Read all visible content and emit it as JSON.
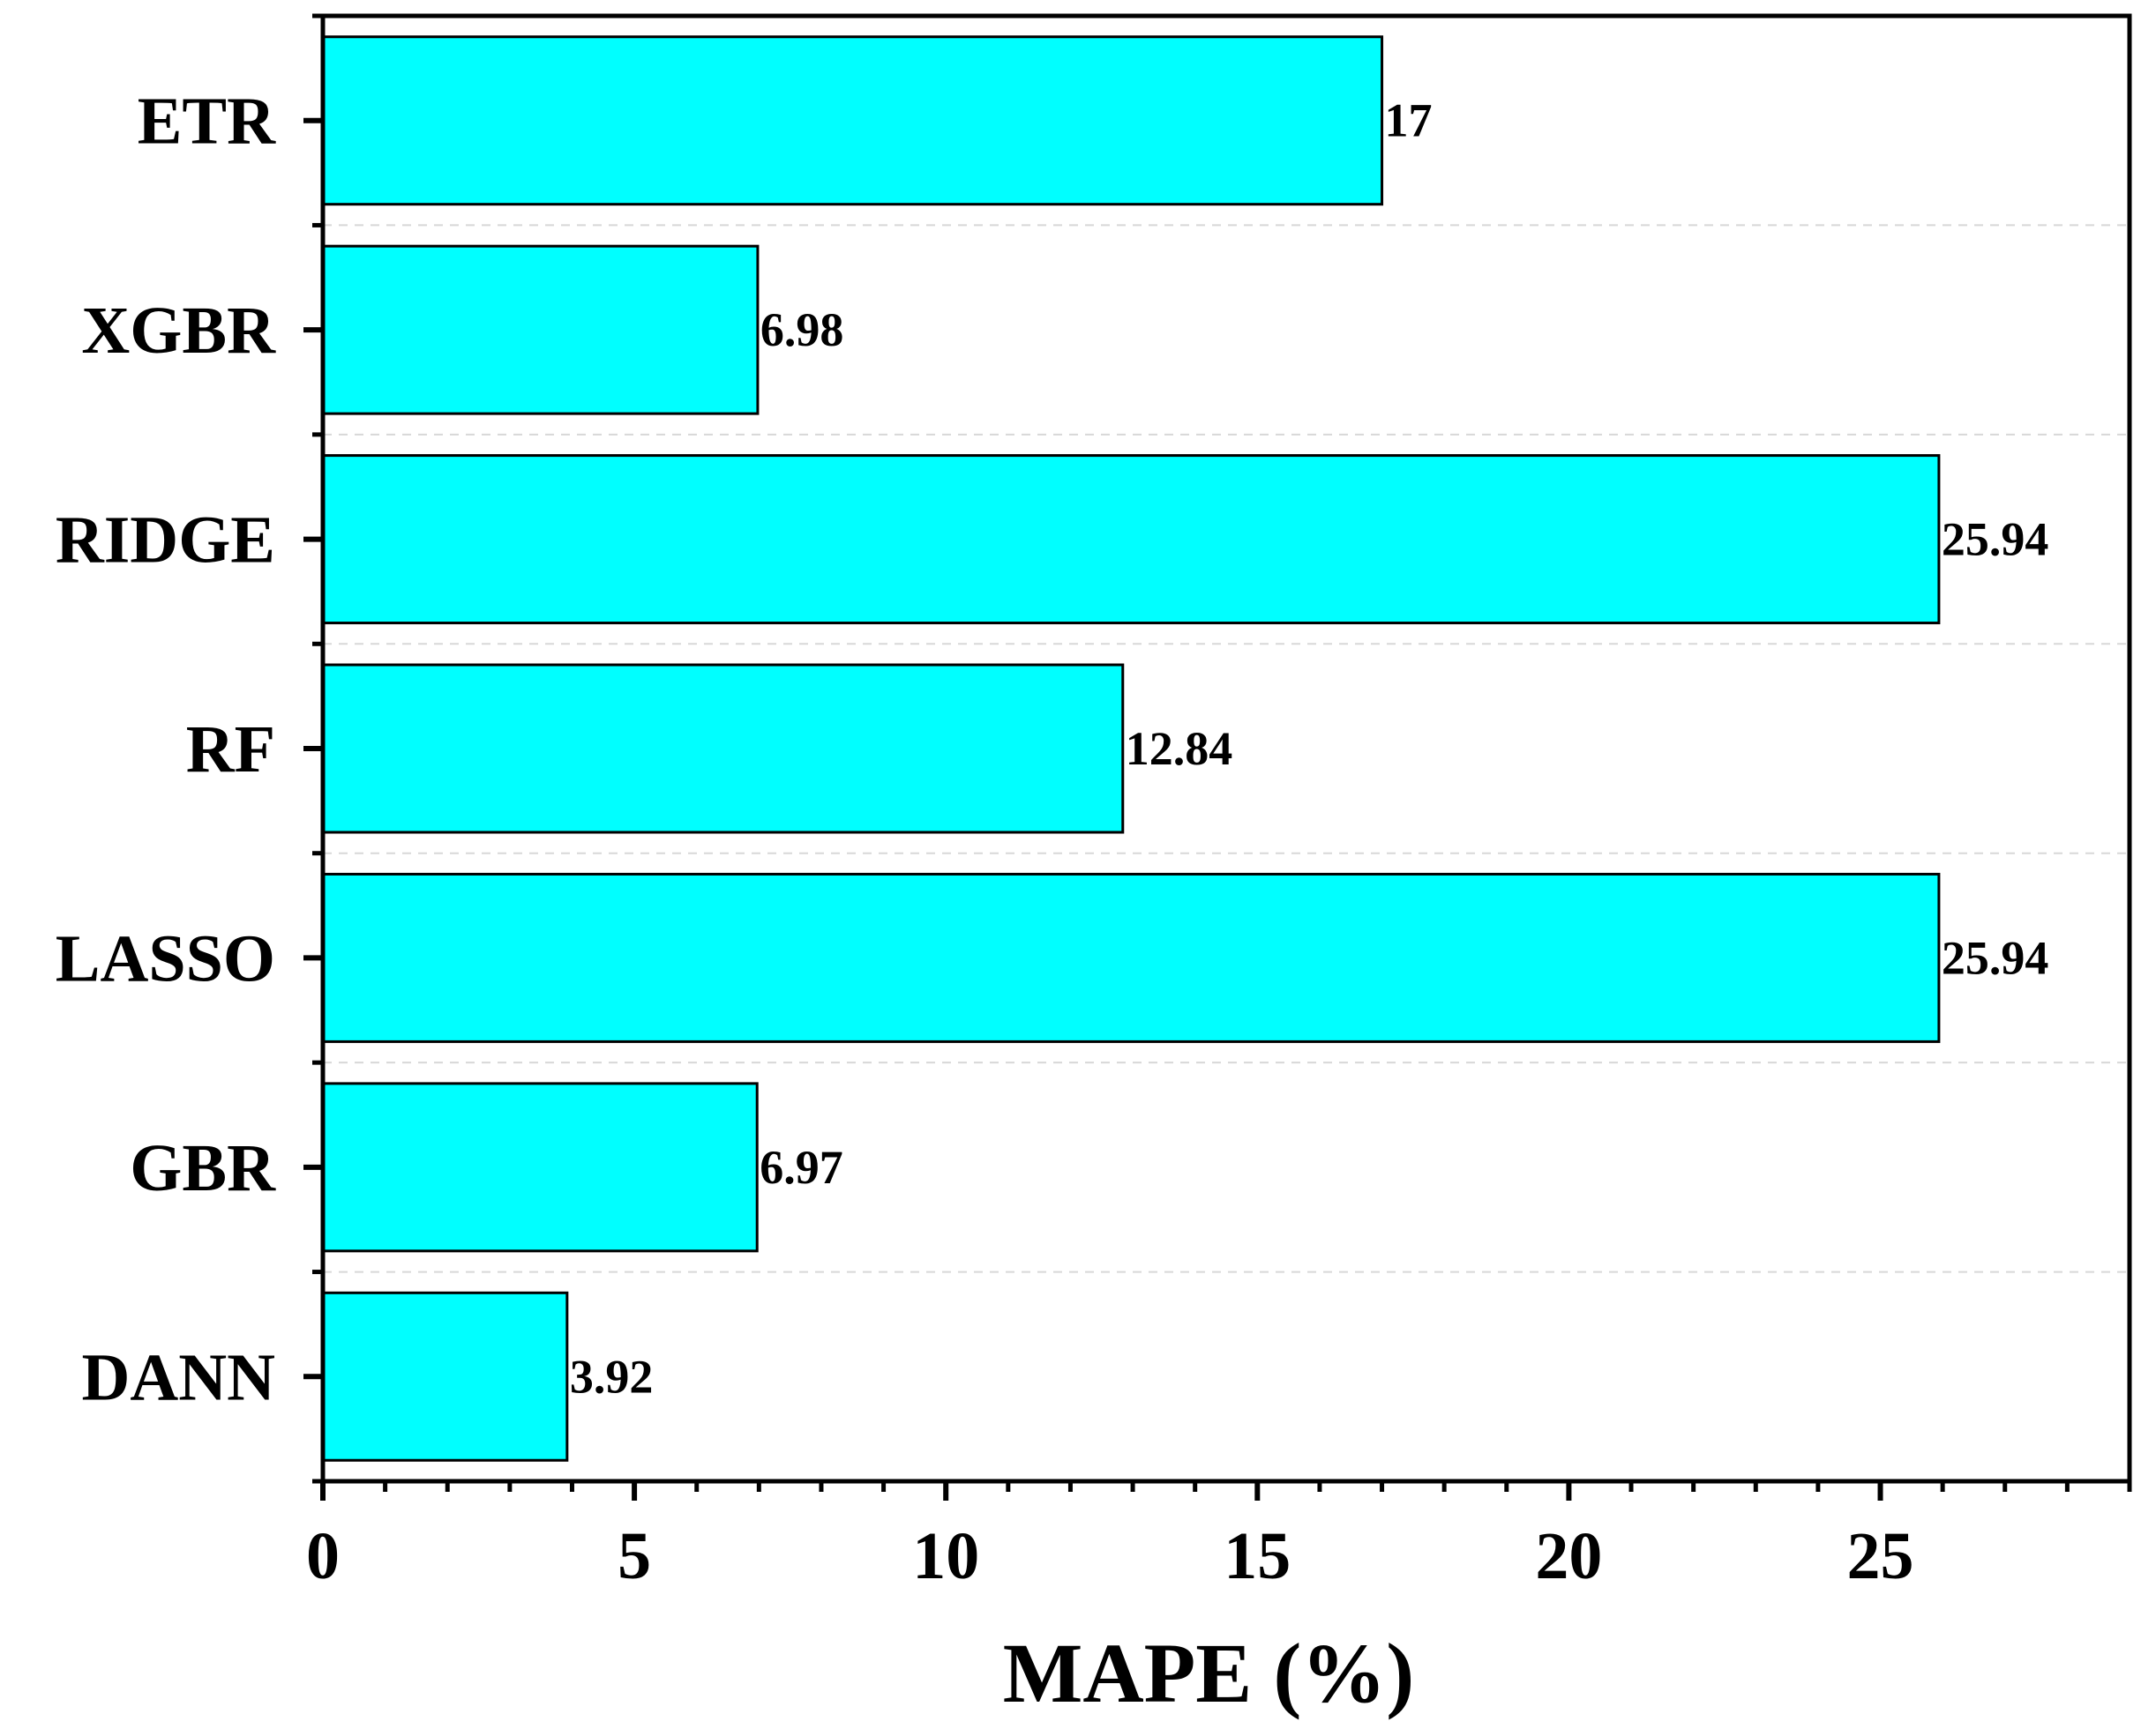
{
  "chart_data": {
    "type": "bar",
    "orientation": "horizontal",
    "categories": [
      "ETR",
      "XGBR",
      "RIDGE",
      "RF",
      "LASSO",
      "GBR",
      "DANN"
    ],
    "values": [
      17,
      6.98,
      25.94,
      12.84,
      25.94,
      6.97,
      3.92
    ],
    "value_labels": [
      "17",
      "6.98",
      "25.94",
      "12.84",
      "25.94",
      "6.97",
      "3.92"
    ],
    "xlabel": "MAPE (%)",
    "ylabel": "",
    "title": "",
    "xlim": [
      0,
      29
    ],
    "x_ticks": [
      0,
      5,
      10,
      15,
      20,
      25
    ],
    "x_tick_labels": [
      "0",
      "5",
      "10",
      "15",
      "20",
      "25"
    ],
    "grid": "horizontal dashed separators between bars",
    "legend": "none",
    "colors": {
      "bar_fill": "#00FFFF",
      "bar_stroke": "#000000",
      "grid": "#d8d8d8"
    }
  }
}
